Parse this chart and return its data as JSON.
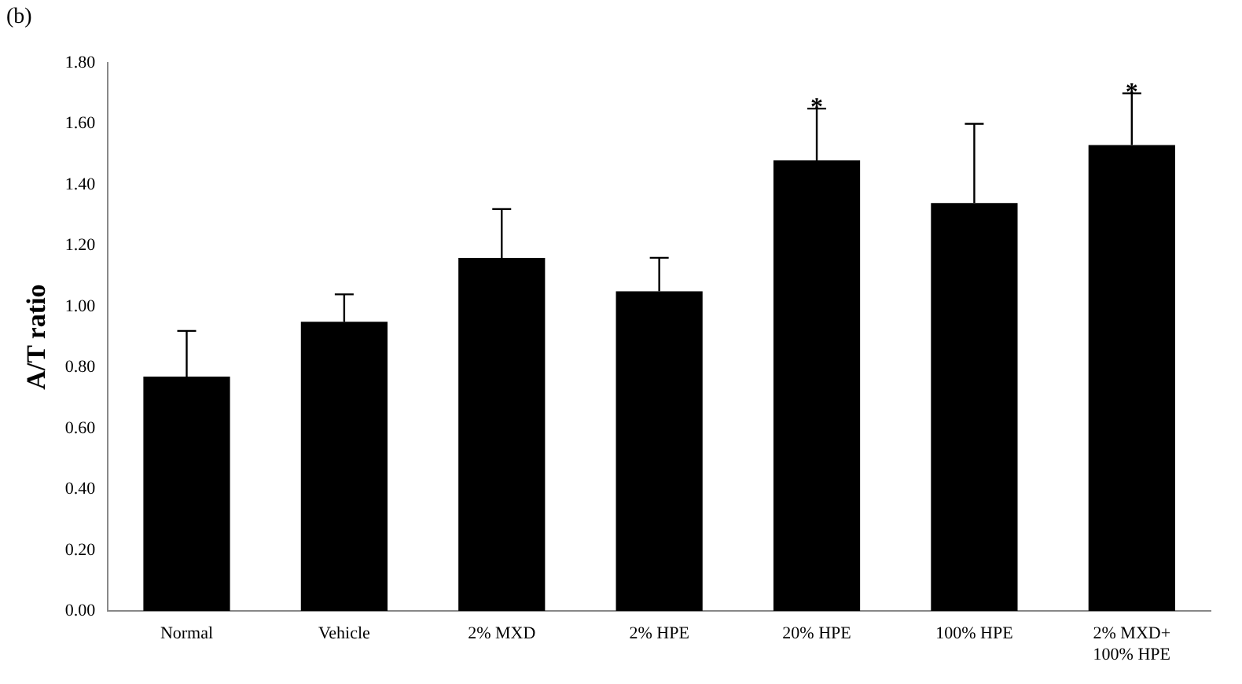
{
  "chart_data": {
    "type": "bar",
    "ylabel": "A/T ratio",
    "categories": [
      "Normal",
      "Vehicle",
      "2% MXD",
      "2% HPE",
      "20% HPE",
      "100% HPE",
      "2% MXD+ 100% HPE"
    ],
    "values": [
      0.77,
      0.95,
      1.16,
      1.05,
      1.48,
      1.34,
      1.53
    ],
    "errors": [
      [
        0.77,
        0.92
      ],
      [
        0.95,
        1.04
      ],
      [
        1.16,
        1.32
      ],
      [
        1.05,
        1.16
      ],
      [
        1.48,
        1.65
      ],
      [
        1.34,
        1.6
      ],
      [
        1.53,
        1.7
      ]
    ],
    "color": "#000000",
    "ylim": [
      0,
      1.8
    ],
    "yticks": [
      {
        "value": 0,
        "label": "0.00"
      },
      {
        "value": 0.2,
        "label": "0.20"
      },
      {
        "value": 0.4,
        "label": "0.40"
      },
      {
        "value": 0.6,
        "label": "0.60"
      },
      {
        "value": 0.8,
        "label": "0.80"
      },
      {
        "value": 1,
        "label": "1.00"
      },
      {
        "value": 1.2,
        "label": "1.20"
      },
      {
        "value": 1.4,
        "label": "1.40"
      },
      {
        "value": 1.6,
        "label": "1.60"
      },
      {
        "value": 1.8,
        "label": "1.80"
      }
    ],
    "grid": false,
    "legend": false,
    "annotations": [
      "(b)",
      {
        "text": "*",
        "x": "20% HPE",
        "y": 1.65
      },
      {
        "text": "*",
        "x": "2% MXD+ 100% HPE",
        "y": 1.7
      }
    ]
  }
}
